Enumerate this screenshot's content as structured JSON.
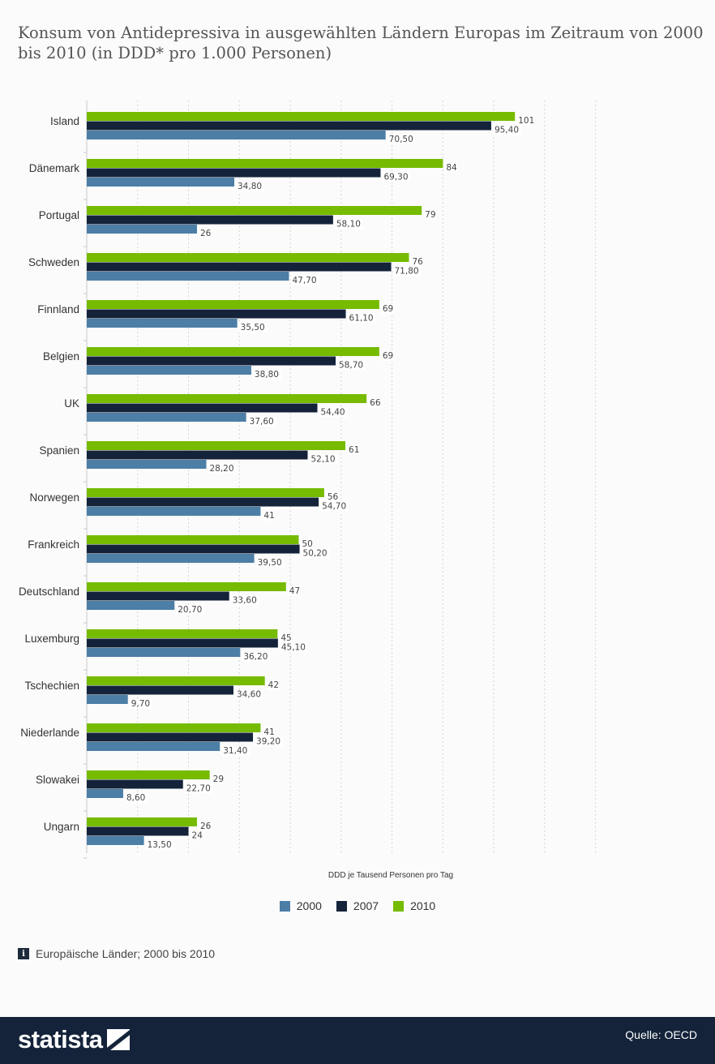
{
  "header": {
    "title": "Konsum von Antidepressiva in ausgewählten Ländern Europas im Zeitraum von 2000 bis 2010 (in DDD* pro 1.000 Personen)"
  },
  "chart_data": {
    "type": "bar",
    "orientation": "horizontal",
    "title": "Konsum von Antidepressiva in ausgewählten Ländern Europas im Zeitraum von 2000 bis 2010 (in DDD* pro 1.000 Personen)",
    "xlabel": "DDD je Tausend Personen pro Tag",
    "ylabel": "",
    "xlim": [
      0,
      120
    ],
    "grid": true,
    "legend_position": "bottom",
    "categories": [
      "Island",
      "Dänemark",
      "Portugal",
      "Schweden",
      "Finnland",
      "Belgien",
      "UK",
      "Spanien",
      "Norwegen",
      "Frankreich",
      "Deutschland",
      "Luxemburg",
      "Tschechien",
      "Niederlande",
      "Slowakei",
      "Ungarn"
    ],
    "series": [
      {
        "name": "2010",
        "color": "#76bb00",
        "values": [
          101,
          84,
          79,
          76,
          69,
          69,
          66,
          61,
          56,
          50,
          47,
          45,
          42,
          41,
          29,
          26
        ],
        "labels": [
          "101",
          "84",
          "79",
          "76",
          "69",
          "69",
          "66",
          "61",
          "56",
          "50",
          "47",
          "45",
          "42",
          "41",
          "29",
          "26"
        ]
      },
      {
        "name": "2007",
        "color": "#14233a",
        "values": [
          95.4,
          69.3,
          58.1,
          71.8,
          61.1,
          58.7,
          54.4,
          52.1,
          54.7,
          50.2,
          33.6,
          45.1,
          34.6,
          39.2,
          22.7,
          24
        ],
        "labels": [
          "95,40",
          "69,30",
          "58,10",
          "71,80",
          "61,10",
          "58,70",
          "54,40",
          "52,10",
          "54,70",
          "50,20",
          "33,60",
          "45,10",
          "34,60",
          "39,20",
          "22,70",
          "24"
        ]
      },
      {
        "name": "2000",
        "color": "#4c7ea6",
        "values": [
          70.5,
          34.8,
          26,
          47.7,
          35.5,
          38.8,
          37.6,
          28.2,
          41,
          39.5,
          20.7,
          36.2,
          9.7,
          31.4,
          8.6,
          13.5
        ],
        "labels": [
          "70,50",
          "34,80",
          "26",
          "47,70",
          "35,50",
          "38,80",
          "37,60",
          "28,20",
          "41",
          "39,50",
          "20,70",
          "36,20",
          "9,70",
          "31,40",
          "8,60",
          "13,50"
        ]
      }
    ]
  },
  "legend": {
    "items": [
      {
        "label": "2000",
        "color": "#4c7ea6"
      },
      {
        "label": "2007",
        "color": "#14233a"
      },
      {
        "label": "2010",
        "color": "#76bb00"
      }
    ]
  },
  "note": {
    "icon": "info-icon",
    "text": "Europäische Länder; 2000 bis 2010"
  },
  "footer": {
    "logo_text": "statista",
    "source": "Quelle: OECD",
    "background": "#14233a"
  }
}
